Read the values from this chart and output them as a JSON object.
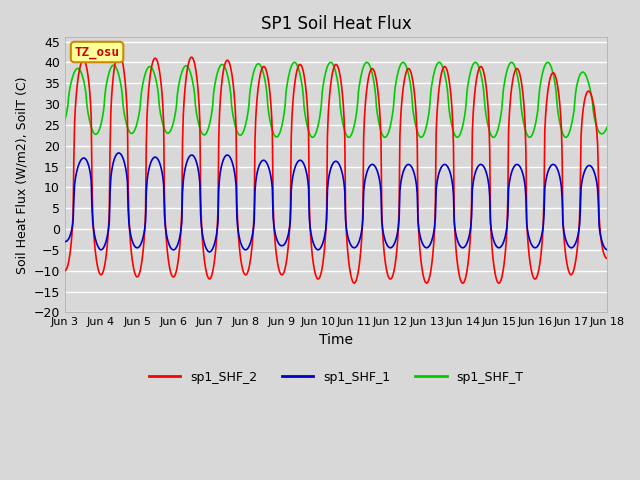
{
  "title": "SP1 Soil Heat Flux",
  "xlabel": "Time",
  "ylabel": "Soil Heat Flux (W/m2), SoilT (C)",
  "ylim": [
    -20,
    46
  ],
  "yticks": [
    -20,
    -15,
    -10,
    -5,
    0,
    5,
    10,
    15,
    20,
    25,
    30,
    35,
    40,
    45
  ],
  "xtick_labels": [
    "Jun 3",
    "Jun 4",
    "Jun 5",
    "Jun 6",
    "Jun 7",
    "Jun 8",
    "Jun 9",
    "Jun 10",
    "Jun 11",
    "Jun 12",
    "Jun 13",
    "Jun 14",
    "Jun 15",
    "Jun 16",
    "Jun 17",
    "Jun 18"
  ],
  "bg_color": "#d8d8d8",
  "plot_bg_color": "#d8d8d8",
  "grid_color": "#ffffff",
  "shf2_color": "#ff0000",
  "shf1_color": "#0000cc",
  "shfT_color": "#00cc00",
  "tz_label": "TZ_osu",
  "tz_box_color": "#ffff99",
  "tz_box_edge": "#cc8800",
  "legend_labels": [
    "sp1_SHF_2",
    "sp1_SHF_1",
    "sp1_SHF_T"
  ],
  "n_days": 15,
  "samples_per_day": 48
}
